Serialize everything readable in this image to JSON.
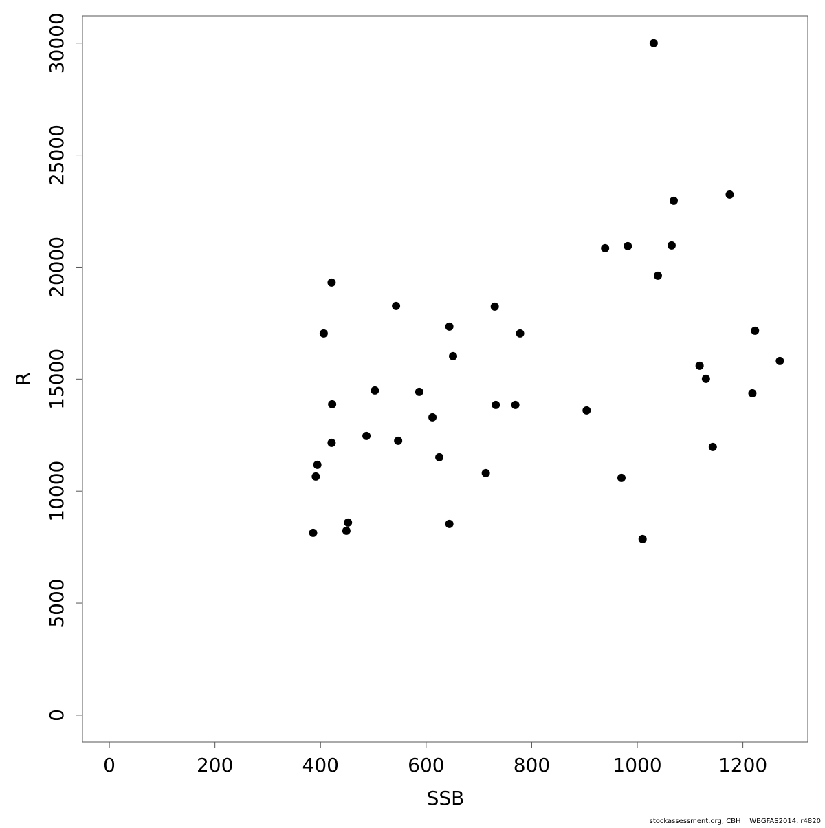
{
  "chart_data": {
    "type": "scatter",
    "xlabel": "SSB",
    "ylabel": "R",
    "x": [
      1031,
      1175,
      1069,
      939,
      982,
      1065,
      1039,
      421,
      543,
      730,
      644,
      406,
      778,
      1223,
      651,
      1270,
      1118,
      1130,
      503,
      587,
      1218,
      422,
      732,
      769,
      904,
      612,
      487,
      547,
      421,
      1143,
      625,
      394,
      391,
      713,
      970,
      452,
      449,
      644,
      386,
      1010
    ],
    "values": [
      30000,
      23243,
      22966,
      20847,
      20940,
      20970,
      19620,
      19312,
      18268,
      18238,
      17347,
      17040,
      17040,
      17163,
      16027,
      15812,
      15597,
      15014,
      14492,
      14431,
      14369,
      13878,
      13847,
      13847,
      13601,
      13294,
      12466,
      12251,
      12159,
      11974,
      11514,
      11176,
      10654,
      10808,
      10592,
      8597,
      8229,
      8536,
      8136,
      7860
    ],
    "color": "#000000",
    "xlim": [
      -50.9,
      1322.9
    ],
    "xticks": [
      0,
      200,
      400,
      600,
      800,
      1000,
      1200
    ],
    "ylim": [
      -1200,
      31220
    ],
    "yticks": [
      0,
      5000,
      10000,
      15000,
      20000,
      25000,
      30000
    ],
    "footer": "stockassessment.org, CBH    WBGFAS2014, r4820"
  }
}
